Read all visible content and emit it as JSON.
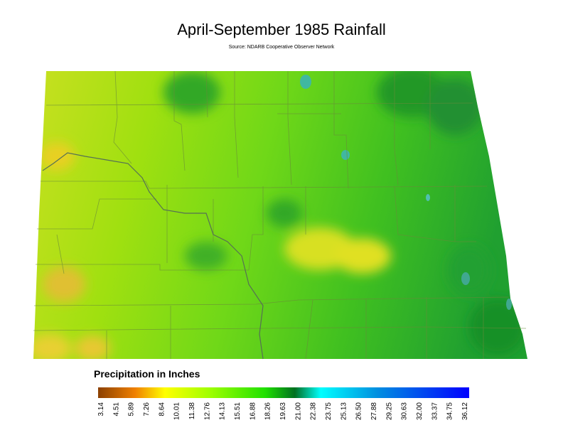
{
  "header": {
    "title": "April-September 1985 Rainfall",
    "source": "Source: NDARB Cooperative Observer Network"
  },
  "legend": {
    "title": "Precipitation in Inches",
    "ticks": [
      "3.14",
      "4.51",
      "5.89",
      "7.26",
      "8.64",
      "10.01",
      "11.38",
      "12.76",
      "14.13",
      "15.51",
      "16.88",
      "18.26",
      "19.63",
      "21.00",
      "22.38",
      "23.75",
      "25.13",
      "26.50",
      "27.88",
      "29.25",
      "30.63",
      "32.00",
      "33.37",
      "34.75",
      "36.12"
    ]
  }
}
